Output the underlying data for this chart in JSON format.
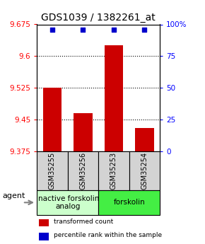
{
  "title": "GDS1039 / 1382261_at",
  "samples": [
    "GSM35255",
    "GSM35256",
    "GSM35253",
    "GSM35254"
  ],
  "bar_values": [
    9.525,
    9.465,
    9.625,
    9.43
  ],
  "percentile_values": [
    100,
    100,
    100,
    100
  ],
  "ymin": 9.375,
  "ymax": 9.675,
  "yticks": [
    9.375,
    9.45,
    9.525,
    9.6,
    9.675
  ],
  "ytick_labels": [
    "9.375",
    "9.45",
    "9.525",
    "9.6",
    "9.675"
  ],
  "y2ticks": [
    0,
    25,
    50,
    75,
    100
  ],
  "y2tick_labels": [
    "0",
    "25",
    "50",
    "75",
    "100%"
  ],
  "bar_color": "#cc0000",
  "dot_color": "#0000cc",
  "bar_width": 0.6,
  "groups": [
    {
      "label": "inactive forskolin\nanalog",
      "samples": [
        0,
        1
      ],
      "color": "#ccffcc"
    },
    {
      "label": "forskolin",
      "samples": [
        2,
        3
      ],
      "color": "#44ee44"
    }
  ],
  "agent_label": "agent",
  "legend_bar_label": "transformed count",
  "legend_dot_label": "percentile rank within the sample",
  "title_fontsize": 10,
  "tick_fontsize": 7.5,
  "sample_fontsize": 7,
  "group_fontsize": 7.5,
  "background_color": "#ffffff"
}
